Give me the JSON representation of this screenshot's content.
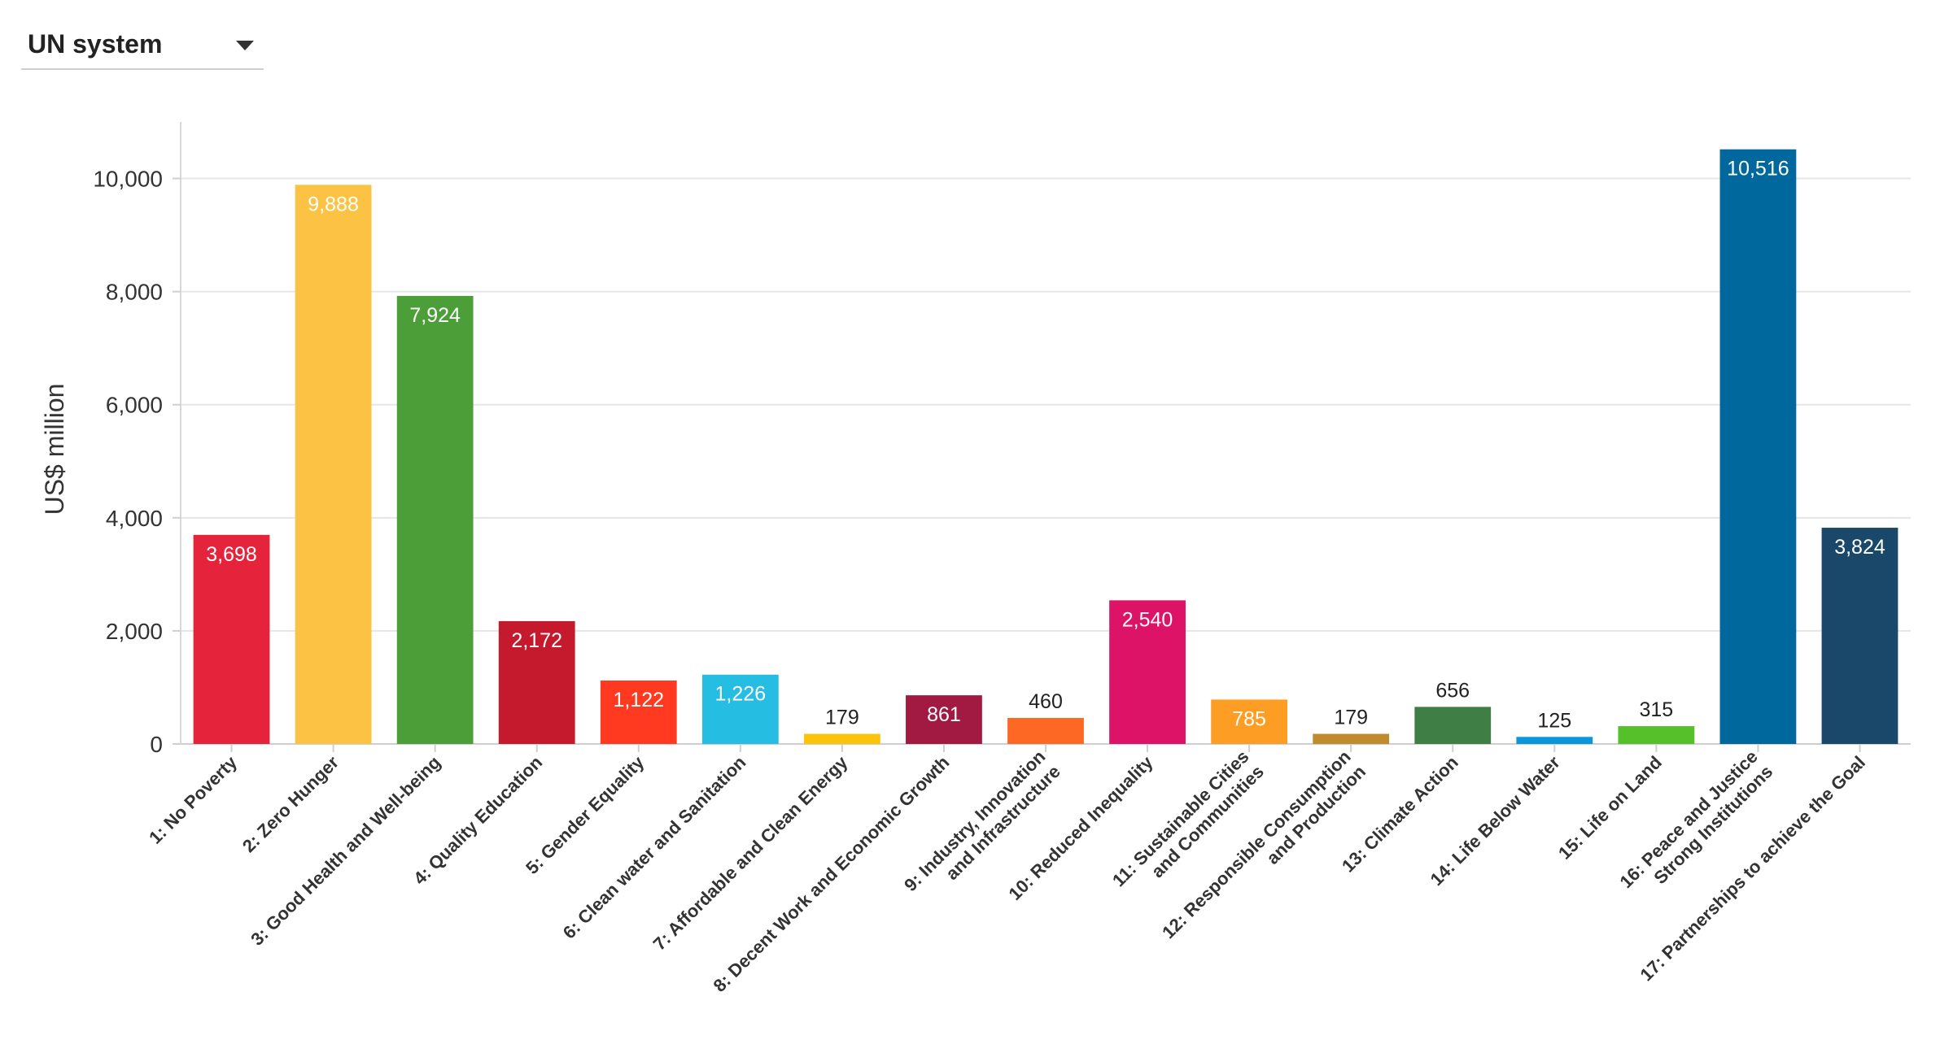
{
  "dropdown": {
    "selected": "UN system",
    "icon": "chevron-down-icon"
  },
  "chart_data": {
    "type": "bar",
    "title": "",
    "xlabel": "",
    "ylabel": "US$ million",
    "ylim": [
      0,
      11000
    ],
    "yticks": [
      0,
      2000,
      4000,
      6000,
      8000,
      10000
    ],
    "ytick_labels": [
      "0",
      "2,000",
      "4,000",
      "6,000",
      "8,000",
      "10,000"
    ],
    "grid": true,
    "legend": "none",
    "categories": [
      "1: No Poverty",
      "2: Zero Hunger",
      "3: Good Health and Well-being",
      "4: Quality Education",
      "5: Gender Equality",
      "6: Clean water and Sanitation",
      "7: Affordable and Clean Energy",
      "8: Decent Work and Economic Growth",
      "9: Industry, Innovation and Infrastructure",
      "10: Reduced Inequality",
      "11: Sustainable Cities and Communities",
      "12: Responsible Consumption and Production",
      "13: Climate Action",
      "14: Life Below Water",
      "15: Life on Land",
      "16: Peace and Justice Strong Institutions",
      "17: Partnerships to achieve the Goal"
    ],
    "values": [
      3698,
      9888,
      7924,
      2172,
      1122,
      1226,
      179,
      861,
      460,
      2540,
      785,
      179,
      656,
      125,
      315,
      10516,
      3824
    ],
    "value_labels": [
      "3,698",
      "9,888",
      "7,924",
      "2,172",
      "1,122",
      "1,226",
      "179",
      "861",
      "460",
      "2,540",
      "785",
      "179",
      "656",
      "125",
      "315",
      "10,516",
      "3,824"
    ],
    "colors": [
      "#e5243b",
      "#fcc243",
      "#4c9f38",
      "#c5192d",
      "#ff3a21",
      "#26bde2",
      "#fcc30b",
      "#a21942",
      "#fd6925",
      "#dd1367",
      "#fd9d24",
      "#bf8b2e",
      "#3f7e44",
      "#0a97d9",
      "#56c02b",
      "#00689d",
      "#19486a"
    ]
  }
}
